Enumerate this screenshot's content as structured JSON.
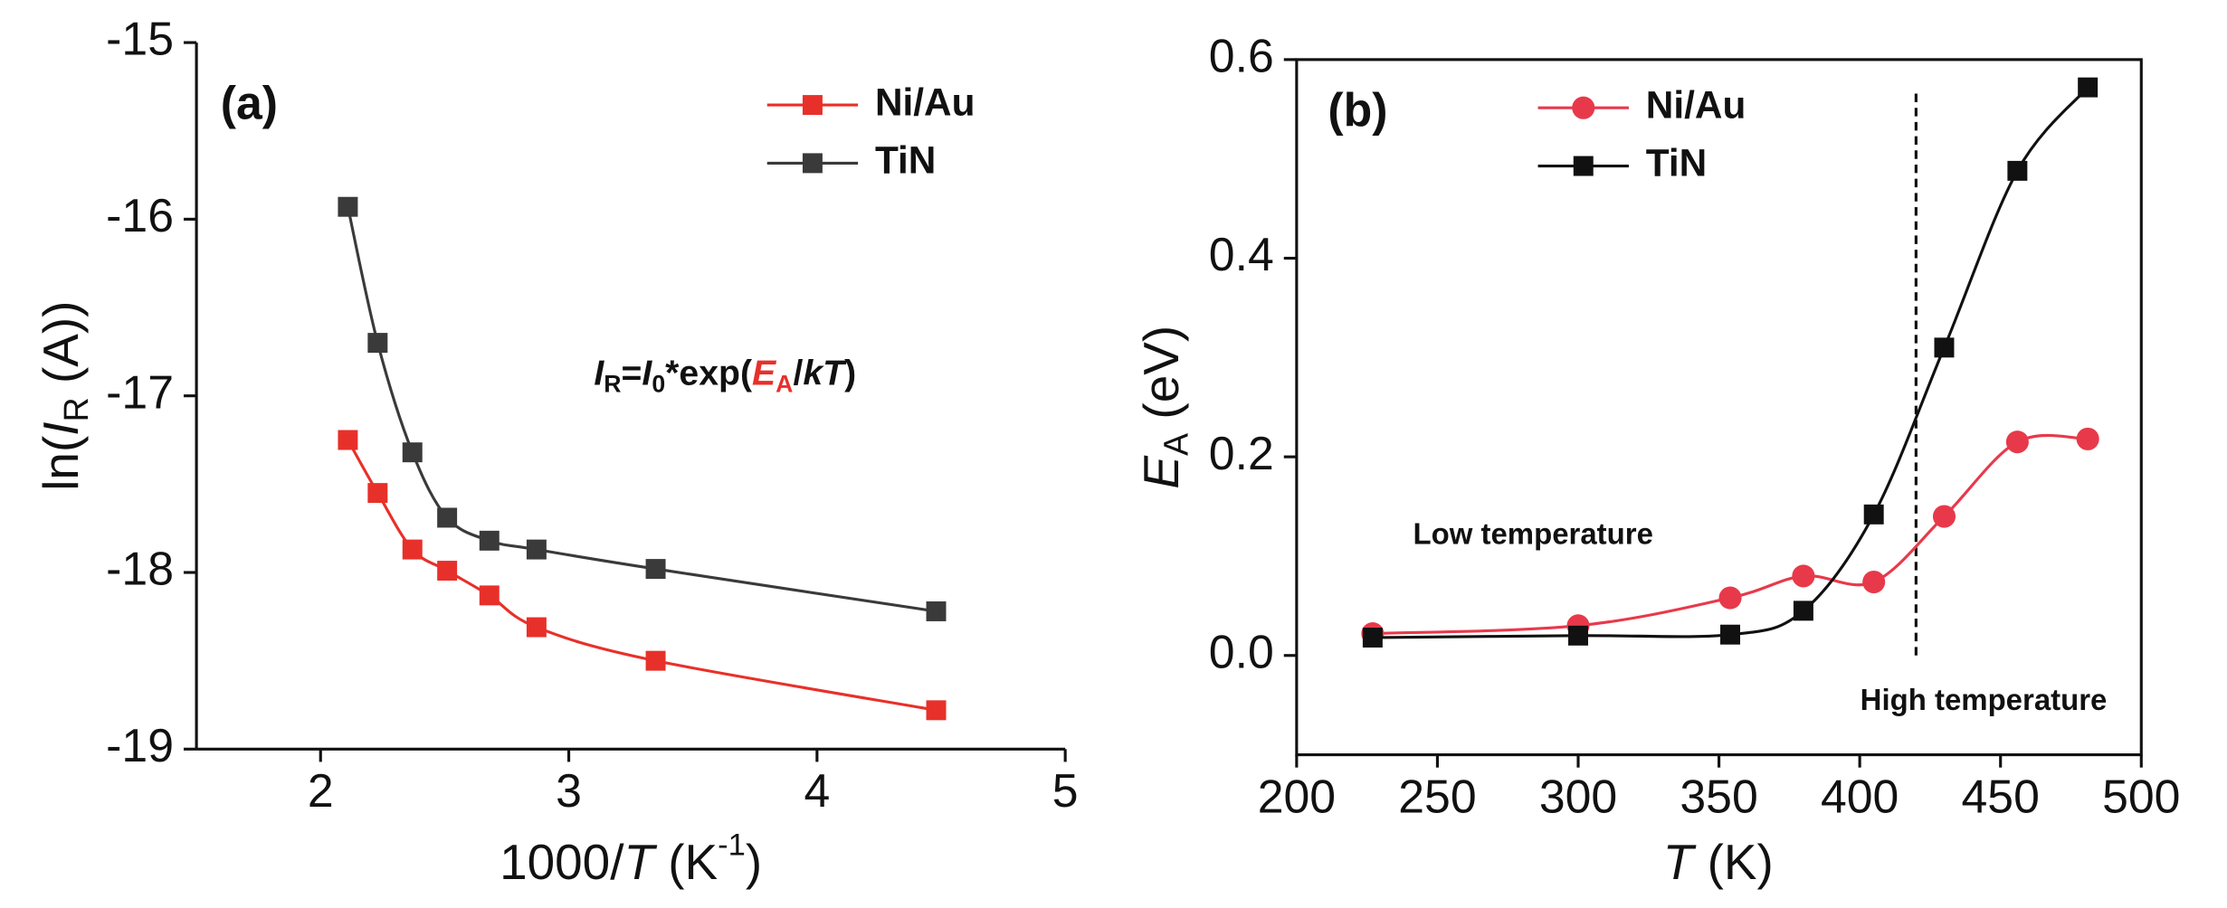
{
  "chart_data": [
    {
      "type": "line",
      "panel_label": "(a)",
      "x_label": [
        "1000/",
        "T",
        " (K",
        "-1",
        ")"
      ],
      "y_label": [
        "ln(",
        "I",
        "R",
        " (A))"
      ],
      "formula": [
        "I",
        "R",
        "=",
        "I",
        "0",
        "*exp(",
        "E",
        "A",
        "/",
        "k",
        "T",
        ")"
      ],
      "x": [
        2.11,
        2.23,
        2.37,
        2.51,
        2.68,
        2.87,
        3.35,
        4.48
      ],
      "series": [
        {
          "name": "Ni/Au",
          "color": "#e8302a",
          "marker": "square",
          "values": [
            -17.25,
            -17.55,
            -17.87,
            -17.99,
            -18.13,
            -18.31,
            -18.5,
            -18.78
          ]
        },
        {
          "name": "TiN",
          "color": "#3a3a3a",
          "marker": "square",
          "values": [
            -15.93,
            -16.7,
            -17.32,
            -17.69,
            -17.82,
            -17.87,
            -17.98,
            -18.22
          ]
        }
      ],
      "xlim": [
        1.5,
        5
      ],
      "xticks": [
        2,
        3,
        4,
        5
      ],
      "ylim": [
        -19,
        -15
      ],
      "yticks": [
        -19,
        -18,
        -17,
        -16,
        -15
      ],
      "legend": "upper right"
    },
    {
      "type": "line",
      "panel_label": "(b)",
      "x_label": [
        "T",
        " (K)"
      ],
      "y_label": [
        "E",
        "A",
        " (eV)"
      ],
      "notes": [
        "Low temperature",
        "High temperature"
      ],
      "reference_x": 420,
      "x": [
        227,
        300,
        354,
        380,
        405,
        430,
        456,
        481
      ],
      "series": [
        {
          "name": "Ni/Au",
          "color": "#e8394b",
          "marker": "circle",
          "values": [
            0.022,
            0.03,
            0.058,
            0.08,
            0.074,
            0.14,
            0.215,
            0.218
          ]
        },
        {
          "name": "TiN",
          "color": "#111111",
          "marker": "square",
          "values": [
            0.018,
            0.02,
            0.021,
            0.045,
            0.142,
            0.31,
            0.488,
            0.572
          ]
        }
      ],
      "xlim": [
        200,
        500
      ],
      "xticks": [
        200,
        250,
        300,
        350,
        400,
        450,
        500
      ],
      "ylim": [
        -0.1,
        0.6
      ],
      "yticks": [
        {
          "value": 0,
          "label": "0.0"
        },
        0.2,
        0.4,
        0.6
      ],
      "legend": "upper left"
    }
  ]
}
